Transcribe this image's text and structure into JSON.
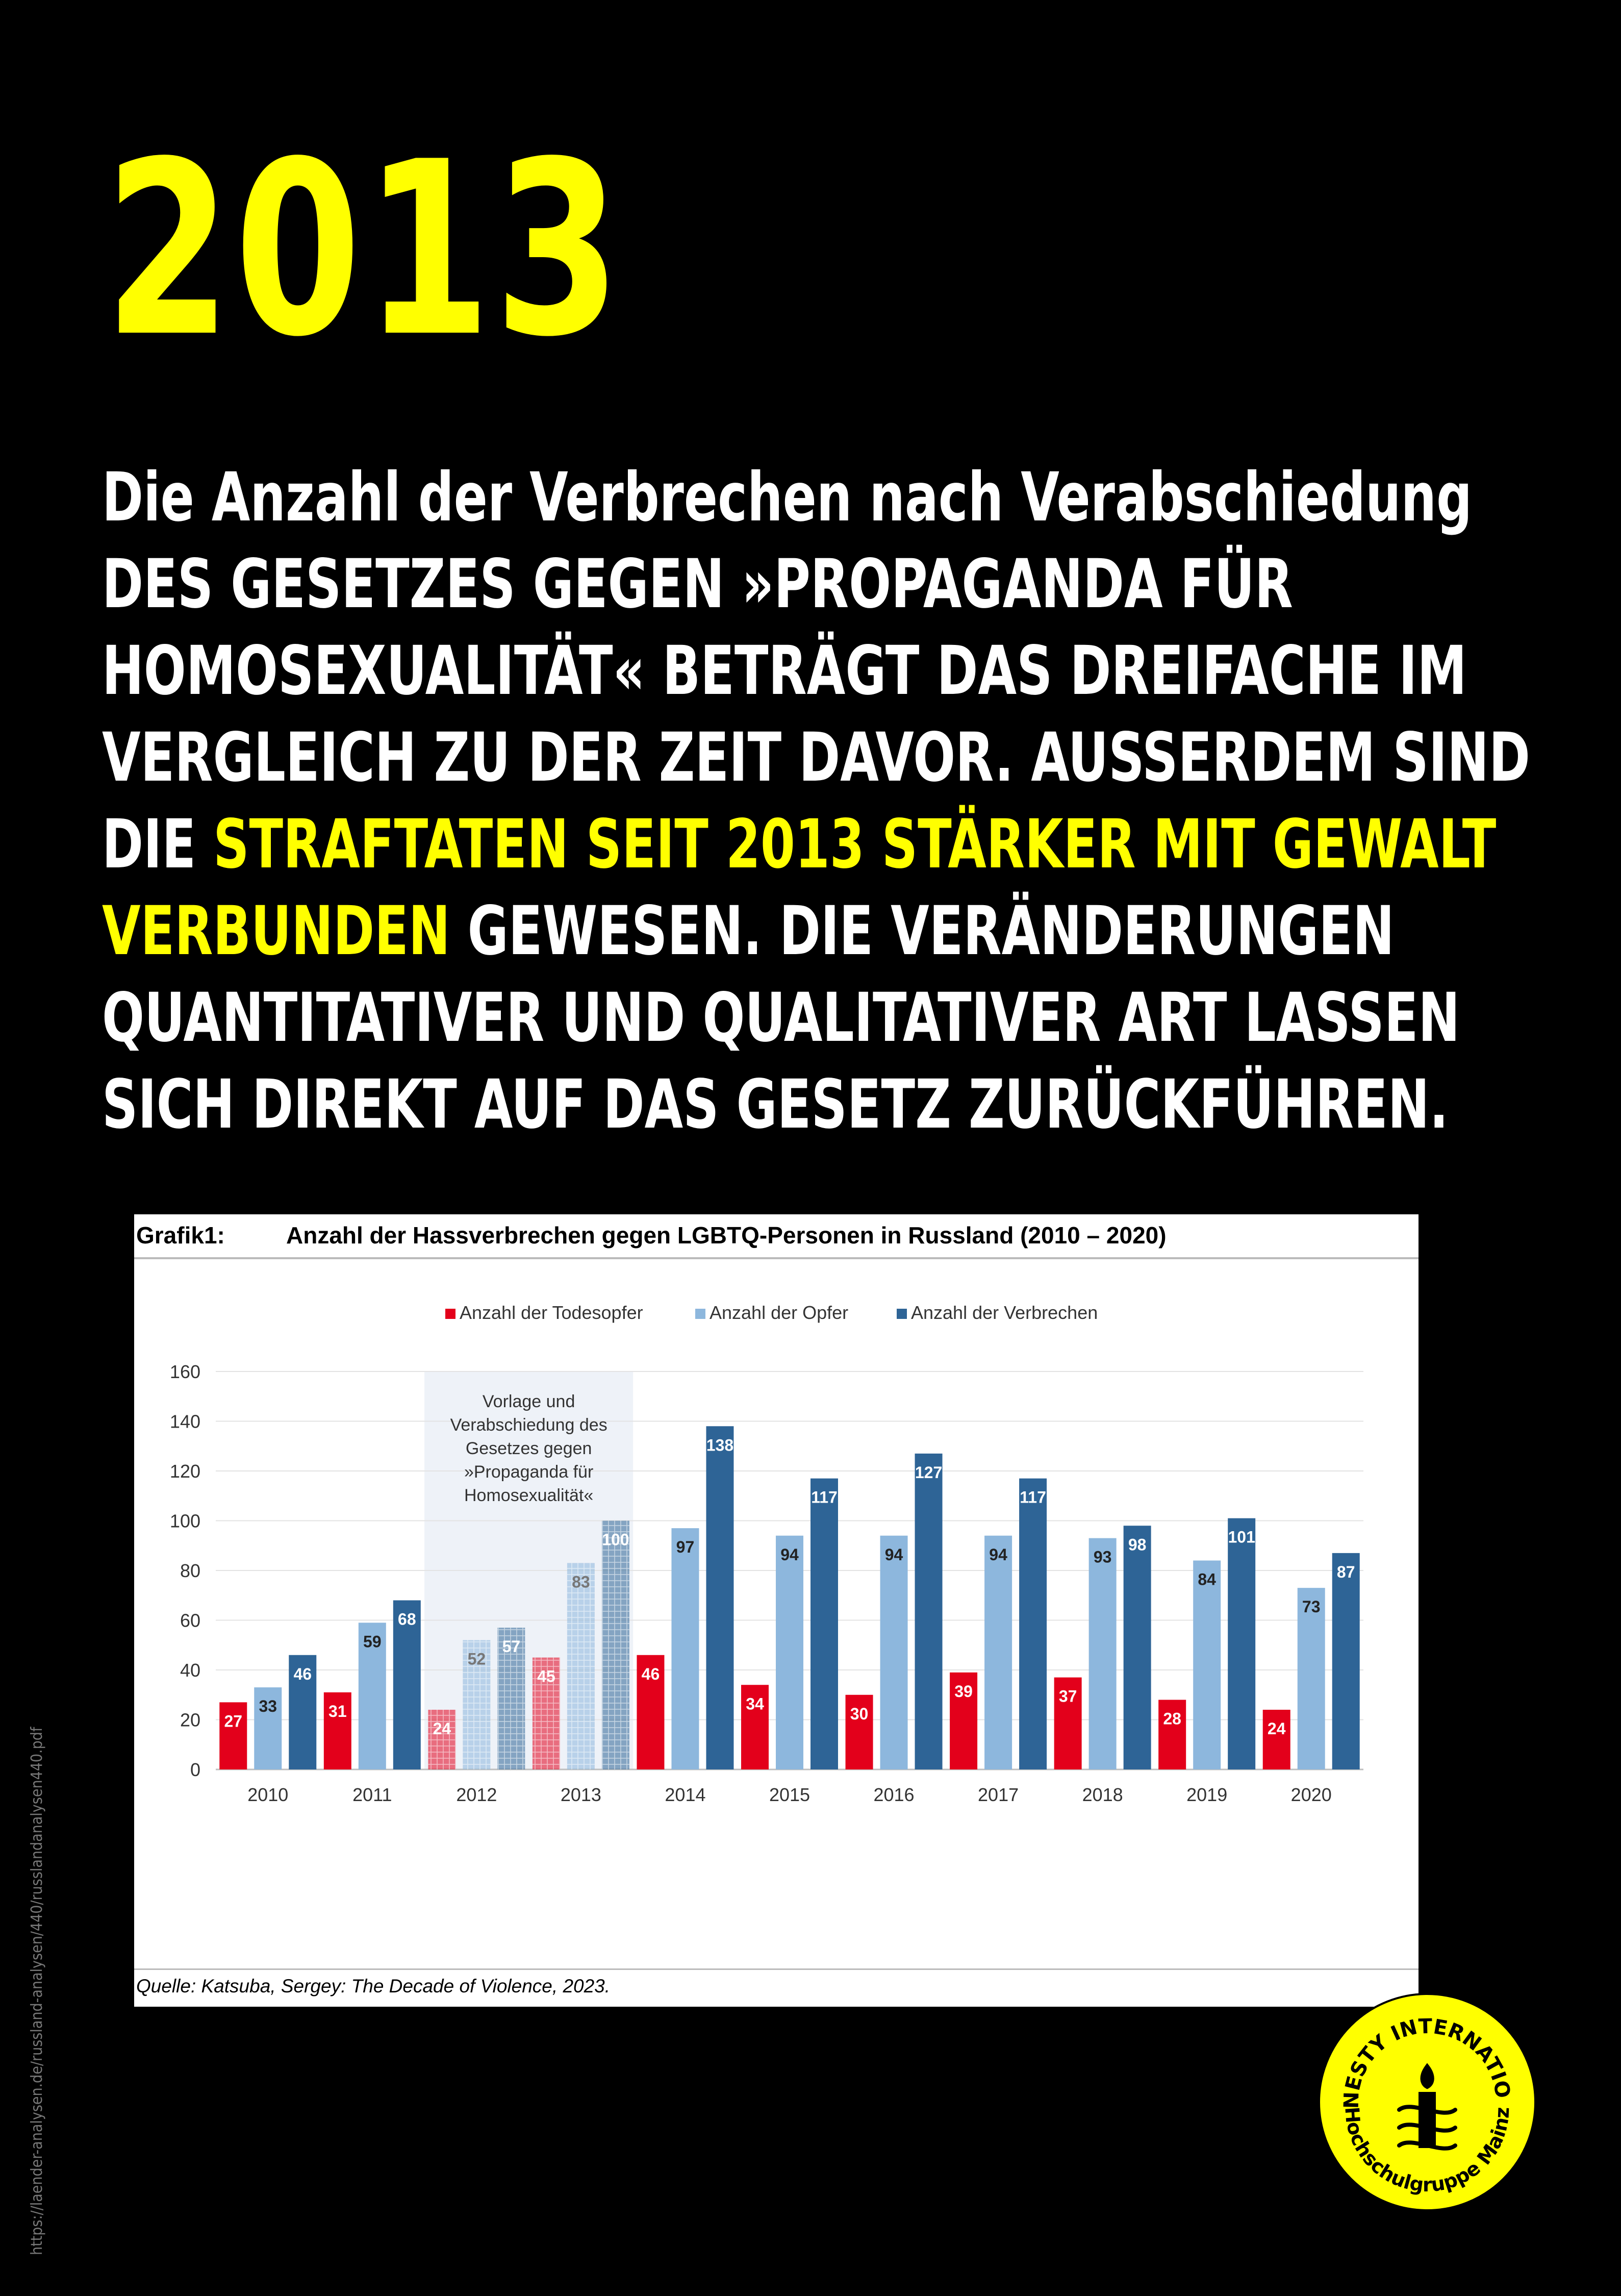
{
  "headline_year": "2013",
  "statement": {
    "part1": "Die Anzahl der Verbrechen nach Verabschiedung",
    "part2": "des Gesetzes gegen »Propaganda für Homosexualität« beträgt das Dreifache im Vergleich zu der Zeit davor. Außerdem sind die ",
    "highlight": "Straftaten seit 2013 stärker mit Gewalt verbunden",
    "part3": " gewesen. Die Veränderungen quantitativer und qualitativer Art lassen sich direkt auf das Gesetz zurückführen."
  },
  "side_source": "https://laender-analysen.de/russland-analysen/440/russlandanalysen440.pdf",
  "figure": {
    "label": "Grafik1:",
    "title": "Anzahl der Hassverbrechen gegen LGBTQ-Personen in Russland (2010 – 2020)",
    "source": "Quelle: Katsuba, Sergey: The Decade of Violence, 2023."
  },
  "chart_data": {
    "type": "bar",
    "categories": [
      "2010",
      "2011",
      "2012",
      "2013",
      "2014",
      "2015",
      "2016",
      "2017",
      "2018",
      "2019",
      "2020"
    ],
    "series": [
      {
        "name": "Anzahl der Todesopfer",
        "color": "#E3001B",
        "values": [
          27,
          31,
          24,
          45,
          46,
          34,
          30,
          39,
          37,
          28,
          24
        ]
      },
      {
        "name": "Anzahl der Opfer",
        "color": "#8DB7DD",
        "values": [
          33,
          59,
          52,
          83,
          97,
          94,
          94,
          94,
          93,
          84,
          73
        ]
      },
      {
        "name": "Anzahl der Verbrechen",
        "color": "#2E6496",
        "values": [
          46,
          68,
          57,
          100,
          138,
          117,
          127,
          117,
          98,
          101,
          87
        ]
      }
    ],
    "ylim": [
      0,
      160
    ],
    "yticks": [
      0,
      20,
      40,
      60,
      80,
      100,
      120,
      140,
      160
    ],
    "grid": true,
    "legend_position": "top",
    "highlighted_categories": [
      "2012",
      "2013"
    ],
    "annotation": "Vorlage und Verabschiedung des Gesetzes gegen »Propaganda für Homosexualität«"
  },
  "logo": {
    "top_text": "AMNESTY INTERNATIONAL",
    "bottom_text": "Hochschulgruppe Mainz",
    "color": "#FFFF00"
  }
}
